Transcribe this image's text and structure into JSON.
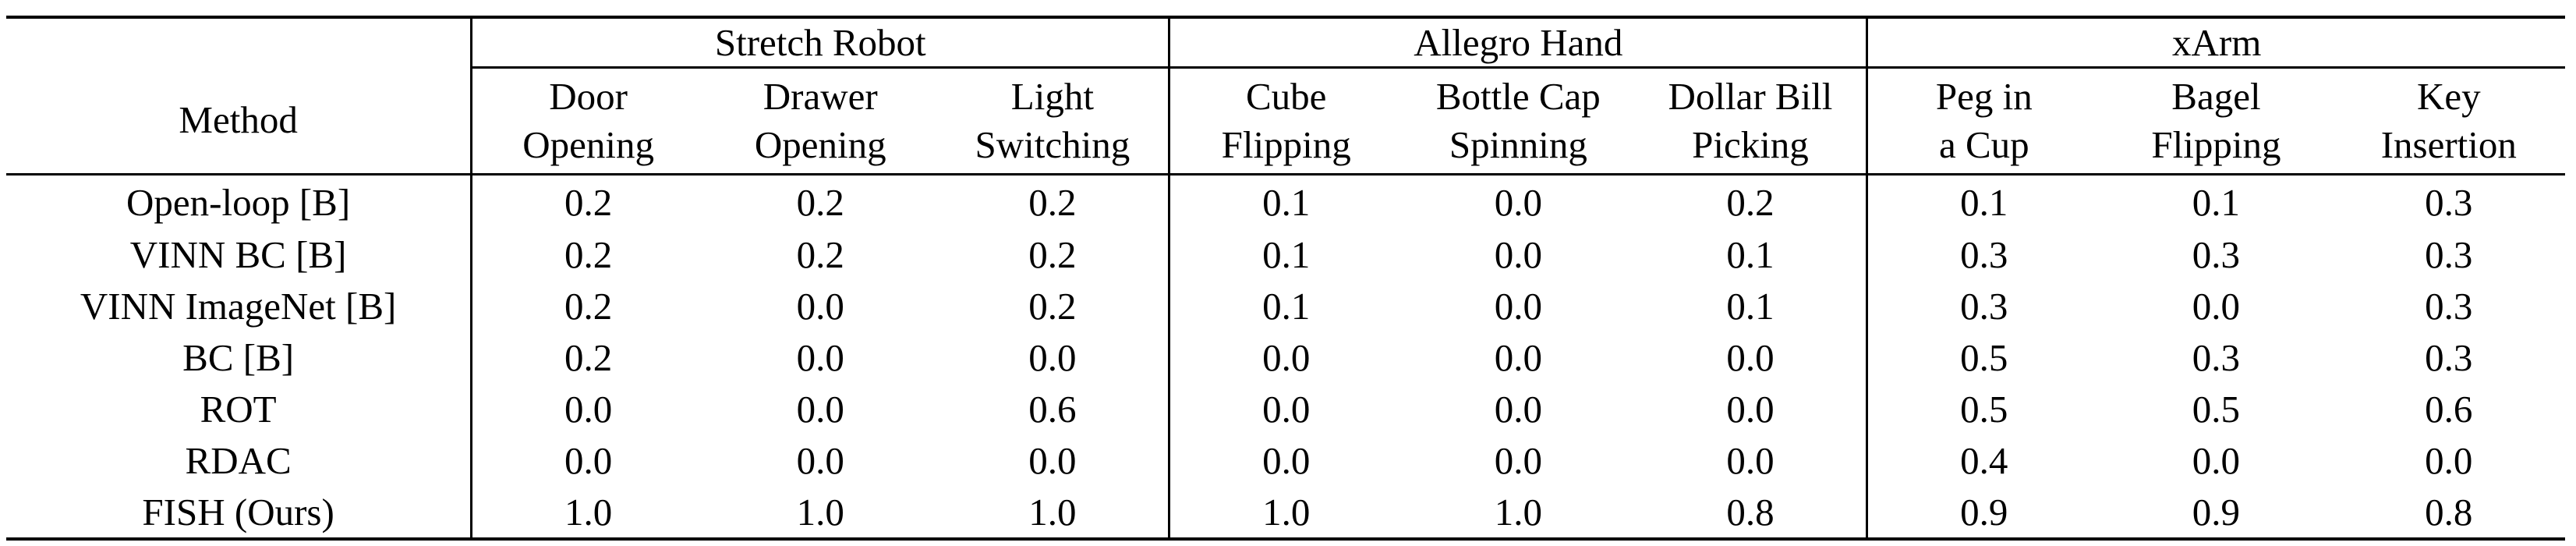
{
  "table": {
    "method_header": "Method",
    "groups": [
      {
        "name": "Stretch Robot",
        "tasks": [
          [
            "Door",
            "Opening"
          ],
          [
            "Drawer",
            "Opening"
          ],
          [
            "Light",
            "Switching"
          ]
        ]
      },
      {
        "name": "Allegro Hand",
        "tasks": [
          [
            "Cube",
            "Flipping"
          ],
          [
            "Bottle Cap",
            "Spinning"
          ],
          [
            "Dollar Bill",
            "Picking"
          ]
        ]
      },
      {
        "name": "xArm",
        "tasks": [
          [
            "Peg in",
            "a Cup"
          ],
          [
            "Bagel",
            "Flipping"
          ],
          [
            "Key",
            "Insertion"
          ]
        ]
      }
    ],
    "rows": [
      {
        "method": "Open-loop [B]",
        "values": [
          "0.2",
          "0.2",
          "0.2",
          "0.1",
          "0.0",
          "0.2",
          "0.1",
          "0.1",
          "0.3"
        ],
        "bold": false
      },
      {
        "method": "VINN BC [B]",
        "values": [
          "0.2",
          "0.2",
          "0.2",
          "0.1",
          "0.0",
          "0.1",
          "0.3",
          "0.3",
          "0.3"
        ],
        "bold": false
      },
      {
        "method": "VINN ImageNet [B]",
        "values": [
          "0.2",
          "0.0",
          "0.2",
          "0.1",
          "0.0",
          "0.1",
          "0.3",
          "0.0",
          "0.3"
        ],
        "bold": false
      },
      {
        "method": "BC [B]",
        "values": [
          "0.2",
          "0.0",
          "0.0",
          "0.0",
          "0.0",
          "0.0",
          "0.5",
          "0.3",
          "0.3"
        ],
        "bold": false
      },
      {
        "method": "ROT",
        "values": [
          "0.0",
          "0.0",
          "0.6",
          "0.0",
          "0.0",
          "0.0",
          "0.5",
          "0.5",
          "0.6"
        ],
        "bold": false
      },
      {
        "method": "RDAC",
        "values": [
          "0.0",
          "0.0",
          "0.0",
          "0.0",
          "0.0",
          "0.0",
          "0.4",
          "0.0",
          "0.0"
        ],
        "bold": false
      },
      {
        "method": "FISH (Ours)",
        "values": [
          "1.0",
          "1.0",
          "1.0",
          "1.0",
          "1.0",
          "0.8",
          "0.9",
          "0.9",
          "0.8"
        ],
        "bold": true
      }
    ]
  }
}
